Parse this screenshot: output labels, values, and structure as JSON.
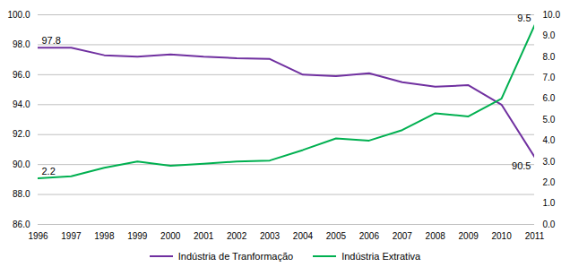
{
  "chart_data": {
    "type": "line",
    "x": [
      1996,
      1997,
      1998,
      1999,
      2000,
      2001,
      2002,
      2003,
      2004,
      2005,
      2006,
      2007,
      2008,
      2009,
      2010,
      2011
    ],
    "xlim": [
      1996,
      2011
    ],
    "xticks": [
      1996,
      1997,
      1998,
      1999,
      2000,
      2001,
      2002,
      2003,
      2004,
      2005,
      2006,
      2007,
      2008,
      2009,
      2010,
      2011
    ],
    "ylim": [
      86.0,
      100.0
    ],
    "yticks": [
      {
        "value": 86,
        "label": "86.0"
      },
      {
        "value": 88,
        "label": "88.0"
      },
      {
        "value": 90,
        "label": "90.0"
      },
      {
        "value": 92,
        "label": "92.0"
      },
      {
        "value": 94,
        "label": "94.0"
      },
      {
        "value": 96,
        "label": "96.0"
      },
      {
        "value": 98,
        "label": "98.0"
      },
      {
        "value": 100,
        "label": "100.0"
      }
    ],
    "y2lim": [
      0.0,
      10.0
    ],
    "y2ticks": [
      {
        "value": 0,
        "label": "0.0"
      },
      {
        "value": 1,
        "label": "1.0"
      },
      {
        "value": 2,
        "label": "2.0"
      },
      {
        "value": 3,
        "label": "3.0"
      },
      {
        "value": 4,
        "label": "4.0"
      },
      {
        "value": 5,
        "label": "5.0"
      },
      {
        "value": 6,
        "label": "6.0"
      },
      {
        "value": 7,
        "label": "7.0"
      },
      {
        "value": 8,
        "label": "8.0"
      },
      {
        "value": 9,
        "label": "9.0"
      },
      {
        "value": 10,
        "label": "10.0"
      }
    ],
    "series": [
      {
        "name": "Indústria de Tranformação",
        "color": "#7030A0",
        "values": [
          97.8,
          97.8,
          97.3,
          97.2,
          97.35,
          97.2,
          97.1,
          97.05,
          96.0,
          95.9,
          96.1,
          95.5,
          95.2,
          95.3,
          94.0,
          90.5
        ]
      },
      {
        "name": "Indústria Extrativa",
        "color": "#00B050",
        "axis": "y2",
        "values": [
          2.2,
          2.3,
          2.7,
          3.0,
          2.8,
          2.9,
          3.0,
          3.05,
          3.55,
          4.1,
          4.0,
          4.5,
          5.3,
          5.15,
          6.0,
          9.5
        ]
      }
    ],
    "annotations": [
      {
        "text": "97.8",
        "x": 1996,
        "y": 97.8
      },
      {
        "text": "2.2",
        "x": 1996,
        "y": 2.2,
        "axis": "y2"
      },
      {
        "text": "9.5",
        "x": 2011,
        "y": 9.5,
        "axis": "y2"
      },
      {
        "text": "90.5",
        "x": 2011,
        "y": 90.5
      }
    ],
    "grid": true,
    "legend": "bottom"
  }
}
